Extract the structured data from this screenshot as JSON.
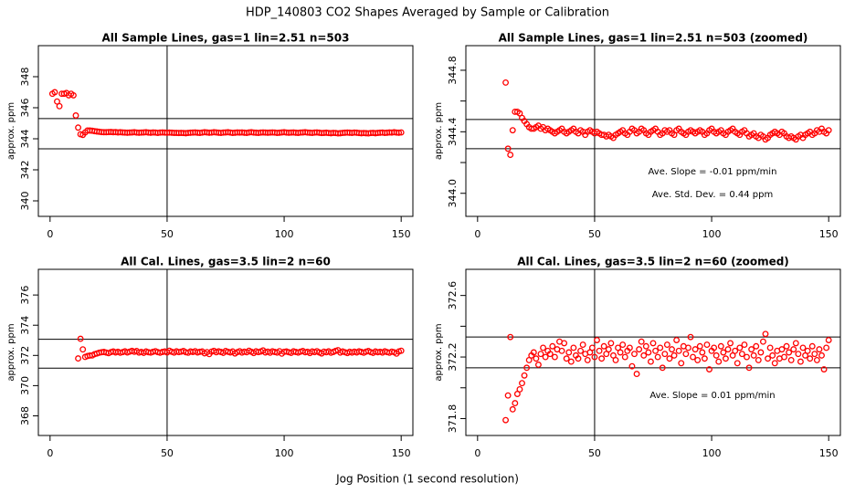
{
  "title": "HDP_140803  CO2 Shapes Averaged by Sample or Calibration",
  "xlabel": "Jog Position (1 second resolution)",
  "chart_data": [
    {
      "type": "scatter",
      "title": "All Sample Lines, gas=1 lin=2.51 n=503",
      "ylabel": "approx. ppm",
      "color": "#ff0000",
      "xlim": [
        -5,
        155
      ],
      "xticks": [
        0,
        50,
        100,
        150
      ],
      "ylim": [
        339,
        350
      ],
      "yticks": [
        340,
        342,
        344,
        346,
        348
      ],
      "reference_lines": {
        "y": [
          345.3,
          343.35
        ],
        "x": [
          50
        ]
      },
      "x": [
        1,
        2,
        3,
        4,
        5,
        6,
        7,
        8,
        9,
        10,
        11,
        12,
        13,
        14,
        15,
        16,
        17,
        18,
        19,
        20,
        21,
        22,
        23,
        24,
        25,
        26,
        27,
        28,
        29,
        30,
        31,
        32,
        33,
        34,
        35,
        36,
        37,
        38,
        39,
        40,
        41,
        42,
        43,
        44,
        45,
        46,
        47,
        48,
        49,
        50,
        51,
        52,
        53,
        54,
        55,
        56,
        57,
        58,
        59,
        60,
        61,
        62,
        63,
        64,
        65,
        66,
        67,
        68,
        69,
        70,
        71,
        72,
        73,
        74,
        75,
        76,
        77,
        78,
        79,
        80,
        81,
        82,
        83,
        84,
        85,
        86,
        87,
        88,
        89,
        90,
        91,
        92,
        93,
        94,
        95,
        96,
        97,
        98,
        99,
        100,
        101,
        102,
        103,
        104,
        105,
        106,
        107,
        108,
        109,
        110,
        111,
        112,
        113,
        114,
        115,
        116,
        117,
        118,
        119,
        120,
        121,
        122,
        123,
        124,
        125,
        126,
        127,
        128,
        129,
        130,
        131,
        132,
        133,
        134,
        135,
        136,
        137,
        138,
        139,
        140,
        141,
        142,
        143,
        144,
        145,
        146,
        147,
        148,
        149,
        150
      ],
      "values": [
        346.9,
        347.0,
        346.4,
        346.1,
        346.9,
        346.9,
        346.95,
        346.8,
        346.9,
        346.8,
        345.5,
        344.72,
        344.29,
        344.25,
        344.41,
        344.53,
        344.53,
        344.52,
        344.49,
        344.47,
        344.45,
        344.43,
        344.42,
        344.42,
        344.43,
        344.44,
        344.42,
        344.43,
        344.41,
        344.42,
        344.41,
        344.4,
        344.39,
        344.4,
        344.41,
        344.42,
        344.4,
        344.39,
        344.4,
        344.41,
        344.42,
        344.4,
        344.39,
        344.41,
        344.4,
        344.38,
        344.4,
        344.41,
        344.4,
        344.39,
        344.4,
        344.39,
        344.38,
        344.38,
        344.37,
        344.38,
        344.37,
        344.36,
        344.38,
        344.39,
        344.4,
        344.41,
        344.39,
        344.38,
        344.4,
        344.42,
        344.41,
        344.39,
        344.4,
        344.42,
        344.41,
        344.39,
        344.38,
        344.4,
        344.41,
        344.42,
        344.4,
        344.38,
        344.39,
        344.41,
        344.4,
        344.41,
        344.39,
        344.38,
        344.41,
        344.42,
        344.4,
        344.39,
        344.38,
        344.4,
        344.41,
        344.4,
        344.39,
        344.4,
        344.41,
        344.4,
        344.38,
        344.39,
        344.41,
        344.42,
        344.4,
        344.39,
        344.4,
        344.41,
        344.39,
        344.38,
        344.4,
        344.41,
        344.42,
        344.4,
        344.39,
        344.38,
        344.4,
        344.41,
        344.39,
        344.37,
        344.38,
        344.39,
        344.37,
        344.36,
        344.38,
        344.37,
        344.35,
        344.36,
        344.38,
        344.39,
        344.4,
        344.39,
        344.38,
        344.4,
        344.39,
        344.37,
        344.36,
        344.37,
        344.36,
        344.35,
        344.37,
        344.38,
        344.36,
        344.38,
        344.39,
        344.4,
        344.38,
        344.39,
        344.41,
        344.4,
        344.42,
        344.4,
        344.39,
        344.41
      ],
      "annotations": []
    },
    {
      "type": "scatter",
      "title": "All Sample Lines, gas=1 lin=2.51 n=503 (zoomed)",
      "ylabel": "approx. ppm",
      "color": "#ff0000",
      "xlim": [
        -5,
        155
      ],
      "xticks": [
        0,
        50,
        100,
        150
      ],
      "ylim": [
        343.85,
        344.96
      ],
      "yticks": [
        {
          "value": 344,
          "label": "344.0"
        },
        344.4,
        344.8
      ],
      "yminor": [
        344.2,
        344.6
      ],
      "reference_lines": {
        "y": [
          344.48,
          344.29
        ],
        "x": [
          50
        ]
      },
      "x": [
        12,
        13,
        14,
        15,
        16,
        17,
        18,
        19,
        20,
        21,
        22,
        23,
        24,
        25,
        26,
        27,
        28,
        29,
        30,
        31,
        32,
        33,
        34,
        35,
        36,
        37,
        38,
        39,
        40,
        41,
        42,
        43,
        44,
        45,
        46,
        47,
        48,
        49,
        50,
        51,
        52,
        53,
        54,
        55,
        56,
        57,
        58,
        59,
        60,
        61,
        62,
        63,
        64,
        65,
        66,
        67,
        68,
        69,
        70,
        71,
        72,
        73,
        74,
        75,
        76,
        77,
        78,
        79,
        80,
        81,
        82,
        83,
        84,
        85,
        86,
        87,
        88,
        89,
        90,
        91,
        92,
        93,
        94,
        95,
        96,
        97,
        98,
        99,
        100,
        101,
        102,
        103,
        104,
        105,
        106,
        107,
        108,
        109,
        110,
        111,
        112,
        113,
        114,
        115,
        116,
        117,
        118,
        119,
        120,
        121,
        122,
        123,
        124,
        125,
        126,
        127,
        128,
        129,
        130,
        131,
        132,
        133,
        134,
        135,
        136,
        137,
        138,
        139,
        140,
        141,
        142,
        143,
        144,
        145,
        146,
        147,
        148,
        149,
        150
      ],
      "values": [
        344.72,
        344.29,
        344.25,
        344.41,
        344.53,
        344.53,
        344.52,
        344.49,
        344.47,
        344.45,
        344.43,
        344.42,
        344.42,
        344.43,
        344.44,
        344.42,
        344.43,
        344.41,
        344.42,
        344.41,
        344.4,
        344.39,
        344.4,
        344.41,
        344.42,
        344.4,
        344.39,
        344.4,
        344.41,
        344.42,
        344.4,
        344.39,
        344.41,
        344.4,
        344.38,
        344.4,
        344.41,
        344.4,
        344.39,
        344.4,
        344.39,
        344.38,
        344.38,
        344.37,
        344.38,
        344.37,
        344.36,
        344.38,
        344.39,
        344.4,
        344.41,
        344.39,
        344.38,
        344.4,
        344.42,
        344.41,
        344.39,
        344.4,
        344.42,
        344.41,
        344.39,
        344.38,
        344.4,
        344.41,
        344.42,
        344.4,
        344.38,
        344.39,
        344.41,
        344.4,
        344.41,
        344.39,
        344.38,
        344.41,
        344.42,
        344.4,
        344.39,
        344.38,
        344.4,
        344.41,
        344.4,
        344.39,
        344.4,
        344.41,
        344.4,
        344.38,
        344.39,
        344.41,
        344.42,
        344.4,
        344.39,
        344.4,
        344.41,
        344.39,
        344.38,
        344.4,
        344.41,
        344.42,
        344.4,
        344.39,
        344.38,
        344.4,
        344.41,
        344.39,
        344.37,
        344.38,
        344.39,
        344.37,
        344.36,
        344.38,
        344.37,
        344.35,
        344.36,
        344.38,
        344.39,
        344.4,
        344.39,
        344.38,
        344.4,
        344.39,
        344.37,
        344.36,
        344.37,
        344.36,
        344.35,
        344.37,
        344.38,
        344.36,
        344.38,
        344.39,
        344.4,
        344.38,
        344.39,
        344.41,
        344.4,
        344.42,
        344.4,
        344.39,
        344.41
      ],
      "annotations": [
        "Ave. Slope =  -0.01  ppm/min",
        "Ave. Std. Dev. =  0.44  ppm"
      ]
    },
    {
      "type": "scatter",
      "title": "All Cal. Lines, gas=3.5 lin=2 n=60",
      "ylabel": "approx. ppm",
      "color": "#ff0000",
      "xlim": [
        -5,
        155
      ],
      "xticks": [
        0,
        50,
        100,
        150
      ],
      "ylim": [
        366.7,
        377.7
      ],
      "yticks": [
        368,
        370,
        372,
        374,
        376
      ],
      "reference_lines": {
        "y": [
          373.07,
          371.16
        ],
        "x": [
          50
        ]
      },
      "x": [
        12,
        13,
        14,
        15,
        16,
        17,
        18,
        19,
        20,
        21,
        22,
        23,
        24,
        25,
        26,
        27,
        28,
        29,
        30,
        31,
        32,
        33,
        34,
        35,
        36,
        37,
        38,
        39,
        40,
        41,
        42,
        43,
        44,
        45,
        46,
        47,
        48,
        49,
        50,
        51,
        52,
        53,
        54,
        55,
        56,
        57,
        58,
        59,
        60,
        61,
        62,
        63,
        64,
        65,
        66,
        67,
        68,
        69,
        70,
        71,
        72,
        73,
        74,
        75,
        76,
        77,
        78,
        79,
        80,
        81,
        82,
        83,
        84,
        85,
        86,
        87,
        88,
        89,
        90,
        91,
        92,
        93,
        94,
        95,
        96,
        97,
        98,
        99,
        100,
        101,
        102,
        103,
        104,
        105,
        106,
        107,
        108,
        109,
        110,
        111,
        112,
        113,
        114,
        115,
        116,
        117,
        118,
        119,
        120,
        121,
        122,
        123,
        124,
        125,
        126,
        127,
        128,
        129,
        130,
        131,
        132,
        133,
        134,
        135,
        136,
        137,
        138,
        139,
        140,
        141,
        142,
        143,
        144,
        145,
        146,
        147,
        148,
        149,
        150
      ],
      "values": [
        371.8,
        373.1,
        372.4,
        371.9,
        371.96,
        371.99,
        372.0,
        372.08,
        372.13,
        372.18,
        372.21,
        372.23,
        372.19,
        372.15,
        372.22,
        372.26,
        372.2,
        372.24,
        372.18,
        372.22,
        372.27,
        372.2,
        372.25,
        372.3,
        372.24,
        372.29,
        372.19,
        372.23,
        372.17,
        372.26,
        372.21,
        372.19,
        372.24,
        372.28,
        372.22,
        372.18,
        372.23,
        372.26,
        372.2,
        372.31,
        372.24,
        372.19,
        372.27,
        372.22,
        372.25,
        372.29,
        372.21,
        372.18,
        372.26,
        372.23,
        372.28,
        372.2,
        372.24,
        372.26,
        372.14,
        372.22,
        372.09,
        372.25,
        372.3,
        372.21,
        372.27,
        372.23,
        372.17,
        372.29,
        372.24,
        372.2,
        372.26,
        372.13,
        372.22,
        372.28,
        372.19,
        372.25,
        372.21,
        372.31,
        372.24,
        372.16,
        372.27,
        372.22,
        372.26,
        372.33,
        372.2,
        372.25,
        372.18,
        372.27,
        372.23,
        372.19,
        372.28,
        372.12,
        372.24,
        372.26,
        372.21,
        372.17,
        372.27,
        372.23,
        372.19,
        372.25,
        372.29,
        372.21,
        372.24,
        372.16,
        372.26,
        372.22,
        372.28,
        372.2,
        372.13,
        372.25,
        372.21,
        372.27,
        372.18,
        372.23,
        372.3,
        372.35,
        372.19,
        372.26,
        372.21,
        372.16,
        372.24,
        372.19,
        372.25,
        372.2,
        372.27,
        372.23,
        372.18,
        372.25,
        372.29,
        372.22,
        372.17,
        372.26,
        372.21,
        372.24,
        372.19,
        372.27,
        372.22,
        372.18,
        372.25,
        372.21,
        372.12,
        372.26,
        372.31
      ],
      "annotations": []
    },
    {
      "type": "scatter",
      "title": "All Cal. Lines, gas=3.5 lin=2 n=60 (zoomed)",
      "ylabel": "approx. ppm",
      "color": "#ff0000",
      "xlim": [
        -5,
        155
      ],
      "xticks": [
        0,
        50,
        100,
        150
      ],
      "ylim": [
        371.69,
        372.77
      ],
      "yticks": [
        371.8,
        372.2,
        372.6
      ],
      "yminor": [
        372.0,
        372.4
      ],
      "reference_lines": {
        "y": [
          372.33,
          372.13
        ],
        "x": [
          50
        ]
      },
      "x": [
        12,
        13,
        14,
        15,
        16,
        17,
        18,
        19,
        20,
        21,
        22,
        23,
        24,
        25,
        26,
        27,
        28,
        29,
        30,
        31,
        32,
        33,
        34,
        35,
        36,
        37,
        38,
        39,
        40,
        41,
        42,
        43,
        44,
        45,
        46,
        47,
        48,
        49,
        50,
        51,
        52,
        53,
        54,
        55,
        56,
        57,
        58,
        59,
        60,
        61,
        62,
        63,
        64,
        65,
        66,
        67,
        68,
        69,
        70,
        71,
        72,
        73,
        74,
        75,
        76,
        77,
        78,
        79,
        80,
        81,
        82,
        83,
        84,
        85,
        86,
        87,
        88,
        89,
        90,
        91,
        92,
        93,
        94,
        95,
        96,
        97,
        98,
        99,
        100,
        101,
        102,
        103,
        104,
        105,
        106,
        107,
        108,
        109,
        110,
        111,
        112,
        113,
        114,
        115,
        116,
        117,
        118,
        119,
        120,
        121,
        122,
        123,
        124,
        125,
        126,
        127,
        128,
        129,
        130,
        131,
        132,
        133,
        134,
        135,
        136,
        137,
        138,
        139,
        140,
        141,
        142,
        143,
        144,
        145,
        146,
        147,
        148,
        149,
        150
      ],
      "values": [
        371.79,
        371.95,
        372.33,
        371.86,
        371.9,
        371.96,
        371.99,
        372.03,
        372.08,
        372.13,
        372.18,
        372.21,
        372.23,
        372.19,
        372.15,
        372.22,
        372.26,
        372.2,
        372.24,
        372.22,
        372.27,
        372.2,
        372.25,
        372.3,
        372.24,
        372.29,
        372.19,
        372.23,
        372.17,
        372.26,
        372.21,
        372.19,
        372.24,
        372.28,
        372.22,
        372.18,
        372.23,
        372.26,
        372.2,
        372.31,
        372.24,
        372.19,
        372.27,
        372.22,
        372.25,
        372.29,
        372.21,
        372.18,
        372.26,
        372.23,
        372.28,
        372.2,
        372.24,
        372.26,
        372.14,
        372.22,
        372.09,
        372.25,
        372.3,
        372.21,
        372.27,
        372.23,
        372.17,
        372.29,
        372.24,
        372.2,
        372.26,
        372.13,
        372.22,
        372.28,
        372.19,
        372.25,
        372.21,
        372.31,
        372.24,
        372.16,
        372.27,
        372.22,
        372.26,
        372.33,
        372.2,
        372.25,
        372.18,
        372.27,
        372.23,
        372.19,
        372.28,
        372.12,
        372.24,
        372.26,
        372.21,
        372.17,
        372.27,
        372.23,
        372.19,
        372.25,
        372.29,
        372.21,
        372.24,
        372.16,
        372.26,
        372.22,
        372.28,
        372.2,
        372.13,
        372.25,
        372.21,
        372.27,
        372.18,
        372.23,
        372.3,
        372.35,
        372.19,
        372.26,
        372.21,
        372.16,
        372.24,
        372.19,
        372.25,
        372.2,
        372.27,
        372.23,
        372.18,
        372.25,
        372.29,
        372.22,
        372.17,
        372.26,
        372.21,
        372.24,
        372.19,
        372.27,
        372.22,
        372.18,
        372.25,
        372.21,
        372.12,
        372.26,
        372.31
      ],
      "annotations": [
        "Ave. Slope =  0.01  ppm/min"
      ]
    }
  ]
}
